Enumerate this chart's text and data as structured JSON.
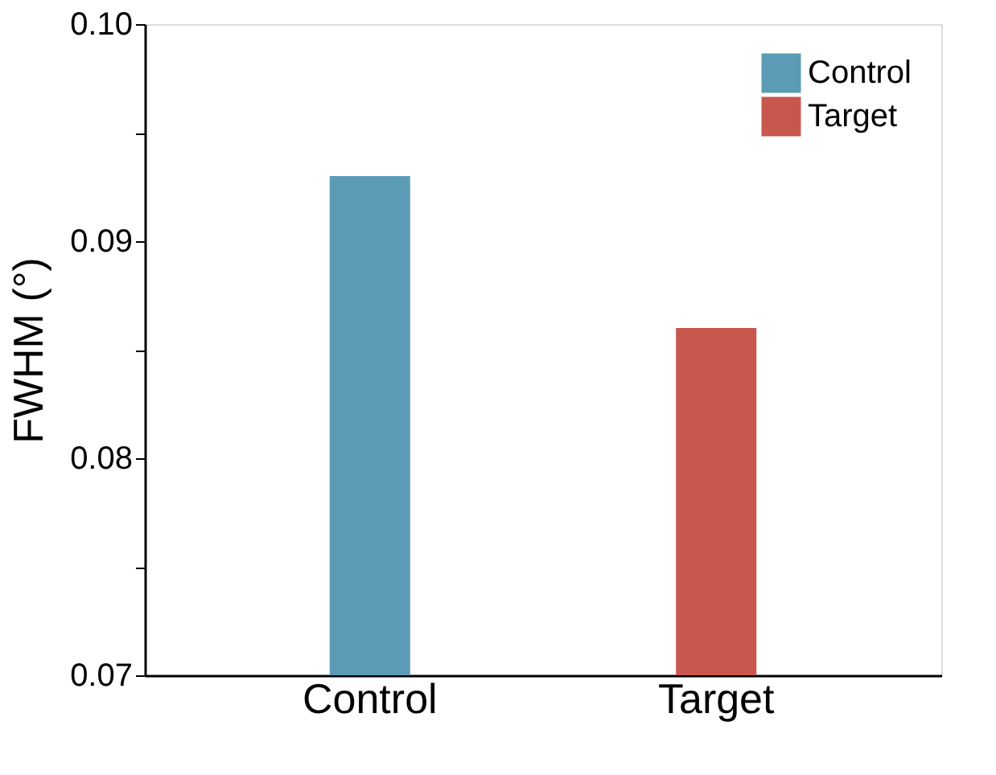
{
  "chart_data": {
    "type": "bar",
    "ylabel": "FWHM (°)",
    "categories": [
      "Control",
      "Target"
    ],
    "series": [
      {
        "name": "Control",
        "color": "#5b9bb5",
        "values": [
          0.093,
          null
        ]
      },
      {
        "name": "Target",
        "color": "#c8574e",
        "values": [
          null,
          0.086
        ]
      }
    ],
    "ylim": [
      0.07,
      0.1
    ],
    "yticks": [
      {
        "value": 0.07,
        "label": "0.07"
      },
      {
        "value": 0.075,
        "label": null
      },
      {
        "value": 0.08,
        "label": "0.08"
      },
      {
        "value": 0.085,
        "label": null
      },
      {
        "value": 0.09,
        "label": "0.09"
      },
      {
        "value": 0.095,
        "label": null
      },
      {
        "value": 0.1,
        "label": "0.10"
      }
    ],
    "grid": false,
    "legend": "top right"
  }
}
